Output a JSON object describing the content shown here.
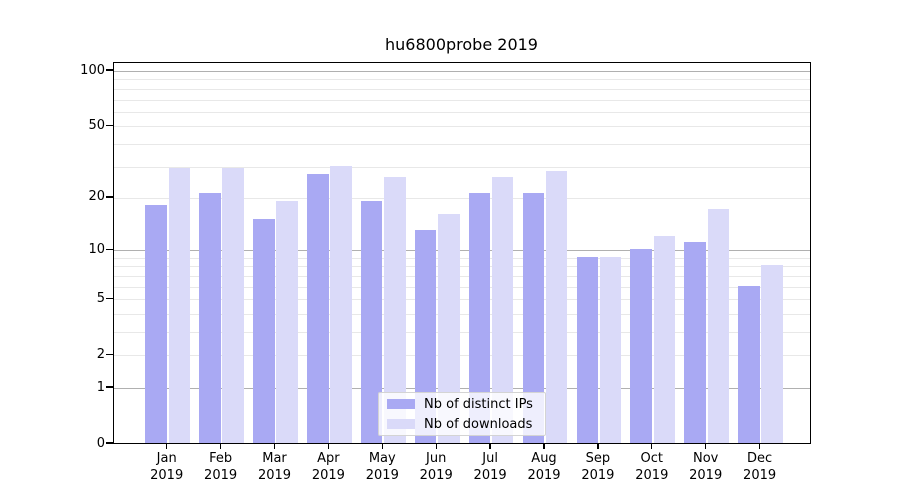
{
  "title": "hu6800probe 2019",
  "chart_data": {
    "type": "bar",
    "title": "hu6800probe 2019",
    "categories": [
      "Jan 2019",
      "Feb 2019",
      "Mar 2019",
      "Apr 2019",
      "May 2019",
      "Jun 2019",
      "Jul 2019",
      "Aug 2019",
      "Sep 2019",
      "Oct 2019",
      "Nov 2019",
      "Dec 2019"
    ],
    "x_months": [
      "Jan",
      "Feb",
      "Mar",
      "Apr",
      "May",
      "Jun",
      "Jul",
      "Aug",
      "Sep",
      "Oct",
      "Nov",
      "Dec"
    ],
    "x_year": "2019",
    "series": [
      {
        "name": "Nb of distinct IPs",
        "color": "#a9a9f3",
        "values": [
          18,
          21,
          15,
          27,
          19,
          13,
          21,
          21,
          9,
          10,
          11,
          6
        ]
      },
      {
        "name": "Nb of downloads",
        "color": "#dadaf9",
        "values": [
          29,
          29,
          19,
          30,
          26,
          16,
          26,
          28,
          9,
          12,
          17,
          8
        ]
      }
    ],
    "yscale": "log1p",
    "ylim": [
      0,
      111
    ],
    "ytick_values": [
      0,
      1,
      2,
      5,
      10,
      20,
      50,
      100
    ],
    "ytick_labels": [
      "0",
      "1",
      "2",
      "5",
      "10",
      "20",
      "50",
      "100"
    ],
    "major_grid_values": [
      1,
      10,
      100
    ],
    "minor_grid_values": [
      2,
      3,
      4,
      5,
      6,
      7,
      8,
      9,
      20,
      30,
      40,
      50,
      60,
      70,
      80,
      90
    ],
    "grid_color_major": "#b0b0b0",
    "grid_color_minor": "#e8e8e8",
    "legend_position": "lower center",
    "grid": "on"
  }
}
